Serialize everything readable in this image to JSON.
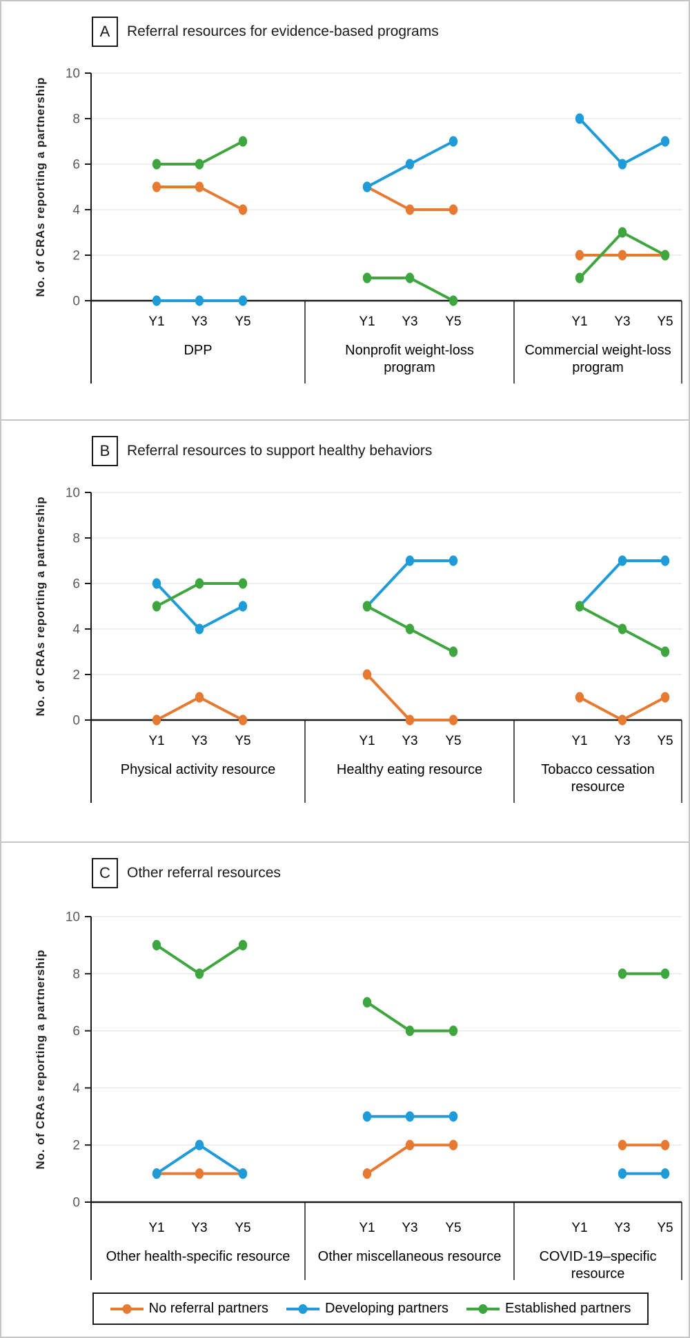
{
  "figure": {
    "y_axis_label": "No. of CRAs reporting a partnership",
    "x_tick_labels": [
      "Y1",
      "Y3",
      "Y5"
    ],
    "y_ticks": [
      0,
      2,
      4,
      6,
      8,
      10
    ],
    "y_range": [
      0,
      10
    ],
    "colors": {
      "no_referral": "#E67A32",
      "developing": "#1F9BD7",
      "established": "#3FA53F",
      "gridline": "#E8E8E8",
      "axis": "#1A1A1A",
      "tick_label": "#595959"
    },
    "legend": [
      {
        "label": "No referral partners",
        "series_key": "no_referral"
      },
      {
        "label": "Developing partners",
        "series_key": "developing"
      },
      {
        "label": "Established partners",
        "series_key": "established"
      }
    ]
  },
  "chart_data": [
    {
      "type": "line",
      "panel_letter": "A",
      "title": "Referral resources for evidence-based programs",
      "x": [
        "Y1",
        "Y3",
        "Y5"
      ],
      "ylim": [
        0,
        10
      ],
      "grid": true,
      "groups": [
        {
          "label": "DPP",
          "series": [
            {
              "name": "No referral partners",
              "values": [
                5,
                5,
                4
              ]
            },
            {
              "name": "Developing partners",
              "values": [
                0,
                0,
                0
              ]
            },
            {
              "name": "Established partners",
              "values": [
                6,
                6,
                7
              ]
            }
          ]
        },
        {
          "label": "Nonprofit weight-loss\nprogram",
          "series": [
            {
              "name": "No referral partners",
              "values": [
                5,
                4,
                4
              ]
            },
            {
              "name": "Developing partners",
              "values": [
                5,
                6,
                7
              ]
            },
            {
              "name": "Established partners",
              "values": [
                1,
                1,
                0
              ]
            }
          ]
        },
        {
          "label": "Commercial weight-loss\nprogram",
          "series": [
            {
              "name": "No referral partners",
              "values": [
                2,
                2,
                2
              ]
            },
            {
              "name": "Developing partners",
              "values": [
                8,
                6,
                7
              ]
            },
            {
              "name": "Established partners",
              "values": [
                1,
                3,
                2
              ]
            }
          ]
        }
      ]
    },
    {
      "type": "line",
      "panel_letter": "B",
      "title": "Referral resources to support healthy behaviors",
      "x": [
        "Y1",
        "Y3",
        "Y5"
      ],
      "ylim": [
        0,
        10
      ],
      "grid": true,
      "groups": [
        {
          "label": "Physical activity resource",
          "series": [
            {
              "name": "No referral partners",
              "values": [
                0,
                1,
                0
              ]
            },
            {
              "name": "Developing partners",
              "values": [
                6,
                4,
                5
              ]
            },
            {
              "name": "Established partners",
              "values": [
                5,
                6,
                6
              ]
            }
          ]
        },
        {
          "label": "Healthy eating resource",
          "series": [
            {
              "name": "No referral partners",
              "values": [
                2,
                0,
                0
              ]
            },
            {
              "name": "Developing partners",
              "values": [
                5,
                7,
                7
              ]
            },
            {
              "name": "Established partners",
              "values": [
                5,
                4,
                3
              ]
            }
          ]
        },
        {
          "label": "Tobacco cessation\nresource",
          "series": [
            {
              "name": "No referral partners",
              "values": [
                1,
                0,
                1
              ]
            },
            {
              "name": "Developing partners",
              "values": [
                5,
                7,
                7
              ]
            },
            {
              "name": "Established partners",
              "values": [
                5,
                4,
                3
              ]
            }
          ]
        }
      ]
    },
    {
      "type": "line",
      "panel_letter": "C",
      "title": "Other referral resources",
      "x": [
        "Y1",
        "Y3",
        "Y5"
      ],
      "ylim": [
        0,
        10
      ],
      "grid": true,
      "groups": [
        {
          "label": "Other health-specific resource",
          "series": [
            {
              "name": "No referral partners",
              "values": [
                1,
                1,
                1
              ]
            },
            {
              "name": "Developing partners",
              "values": [
                1,
                2,
                1
              ]
            },
            {
              "name": "Established partners",
              "values": [
                9,
                8,
                9
              ]
            }
          ]
        },
        {
          "label": "Other miscellaneous resource",
          "series": [
            {
              "name": "No referral partners",
              "values": [
                1,
                2,
                2
              ]
            },
            {
              "name": "Developing partners",
              "values": [
                3,
                3,
                3
              ]
            },
            {
              "name": "Established partners",
              "values": [
                7,
                6,
                6
              ]
            }
          ]
        },
        {
          "label": "COVID-19–specific\nresource",
          "series": [
            {
              "name": "No referral partners",
              "values": [
                null,
                2,
                2
              ]
            },
            {
              "name": "Developing partners",
              "values": [
                null,
                1,
                1
              ]
            },
            {
              "name": "Established partners",
              "values": [
                null,
                8,
                8
              ]
            }
          ]
        }
      ]
    }
  ]
}
